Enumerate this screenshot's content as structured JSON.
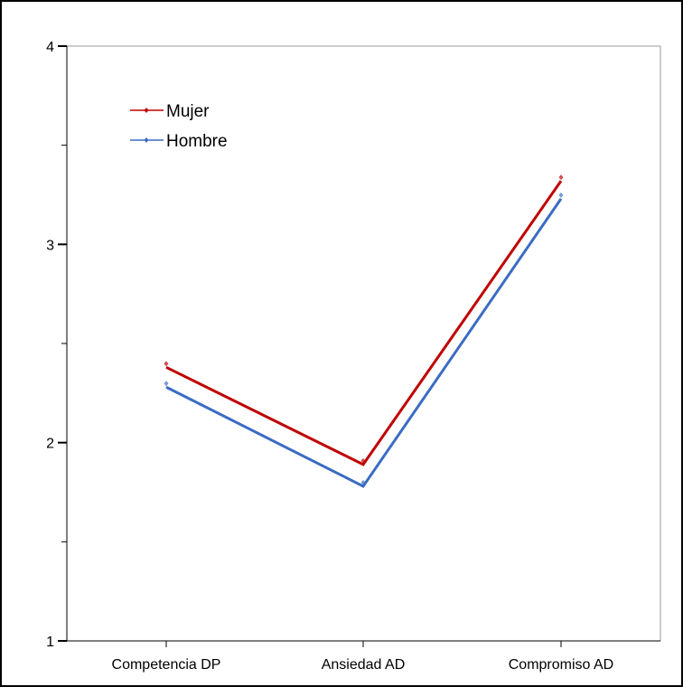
{
  "chart_data": {
    "type": "line",
    "categories": [
      "Competencia DP",
      "Ansiedad AD",
      "Compromiso AD"
    ],
    "series": [
      {
        "name": "Mujer",
        "values": [
          2.38,
          1.89,
          3.32
        ],
        "color": "#c00000"
      },
      {
        "name": "Hombre",
        "values": [
          2.28,
          1.78,
          3.23
        ],
        "color": "#3b6cc4"
      }
    ],
    "ylim": [
      1,
      4
    ],
    "y_major_ticks": [
      1,
      2,
      3,
      4
    ],
    "y_minor_ticks": [
      1.5,
      2.5,
      3.5
    ],
    "grid": false,
    "legend_position": "top-left"
  }
}
